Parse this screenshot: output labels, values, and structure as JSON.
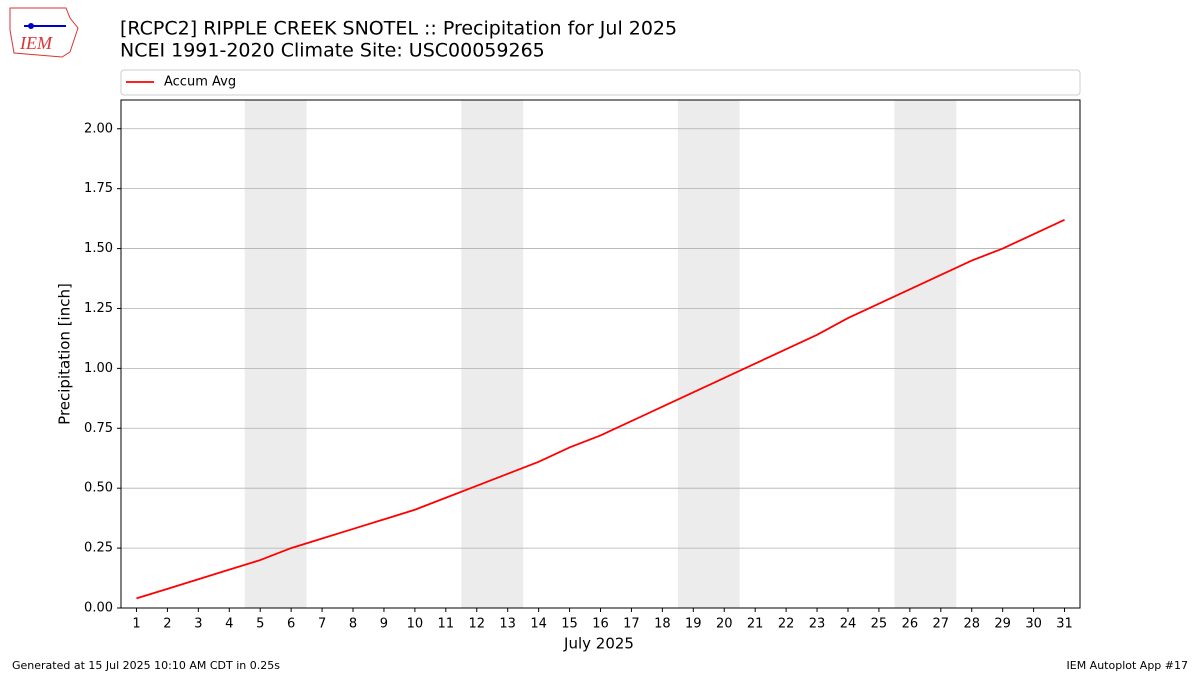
{
  "logo": "IEM",
  "footer_left": "Generated at 15 Jul 2025 10:10 AM CDT in 0.25s",
  "footer_right": "IEM Autoplot App #17",
  "chart_data": {
    "type": "line",
    "title": "[RCPC2] RIPPLE CREEK SNOTEL :: Precipitation for Jul 2025",
    "subtitle": "NCEI 1991-2020 Climate Site: USC00059265",
    "x_label": "July 2025",
    "y_label": "Precipitation [inch]",
    "x": [
      1,
      2,
      3,
      4,
      5,
      6,
      7,
      8,
      9,
      10,
      11,
      12,
      13,
      14,
      15,
      16,
      17,
      18,
      19,
      20,
      21,
      22,
      23,
      24,
      25,
      26,
      27,
      28,
      29,
      30,
      31
    ],
    "series": [
      {
        "name": "Accum Avg",
        "color": "#ff0000",
        "values": [
          0.04,
          0.08,
          0.12,
          0.16,
          0.2,
          0.25,
          0.29,
          0.33,
          0.37,
          0.41,
          0.46,
          0.51,
          0.56,
          0.61,
          0.67,
          0.72,
          0.78,
          0.84,
          0.9,
          0.96,
          1.02,
          1.08,
          1.14,
          1.21,
          1.27,
          1.33,
          1.39,
          1.45,
          1.5,
          1.56,
          1.62
        ]
      }
    ],
    "shaded_ranges": [
      [
        4.5,
        6.5
      ],
      [
        11.5,
        13.5
      ],
      [
        18.5,
        20.5
      ],
      [
        25.5,
        27.5
      ]
    ],
    "shade_color": "#ececec",
    "xlim": [
      0.5,
      31.5
    ],
    "ylim": [
      0,
      2.12
    ],
    "xticks": [
      1,
      2,
      3,
      4,
      5,
      6,
      7,
      8,
      9,
      10,
      11,
      12,
      13,
      14,
      15,
      16,
      17,
      18,
      19,
      20,
      21,
      22,
      23,
      24,
      25,
      26,
      27,
      28,
      29,
      30,
      31
    ],
    "yticks": [
      {
        "value": 0,
        "label": "0.00"
      },
      {
        "value": 0.25,
        "label": "0.25"
      },
      {
        "value": 0.5,
        "label": "0.50"
      },
      {
        "value": 0.75,
        "label": "0.75"
      },
      {
        "value": 1,
        "label": "1.00"
      },
      {
        "value": 1.25,
        "label": "1.25"
      },
      {
        "value": 1.5,
        "label": "1.50"
      },
      {
        "value": 1.75,
        "label": "1.75"
      },
      {
        "value": 2,
        "label": "2.00"
      }
    ],
    "grid": "y",
    "legend": "top"
  }
}
